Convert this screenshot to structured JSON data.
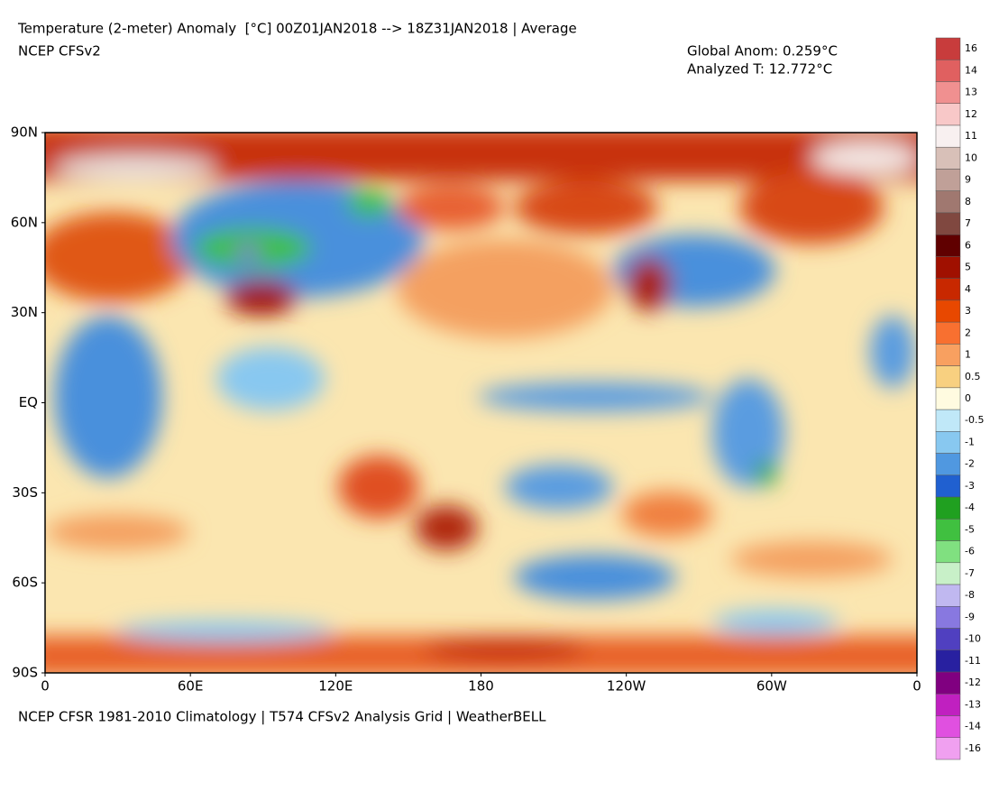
{
  "header": {
    "title": "Temperature (2-meter) Anomaly  [°C] 00Z01JAN2018 --> 18Z31JAN2018 | Average",
    "model": "NCEP CFSv2",
    "global_anom": "Global Anom: 0.259°C",
    "analyzed_t": "Analyzed T: 12.772°C"
  },
  "map": {
    "lat_labels": [
      "90N",
      "60N",
      "30N",
      "EQ",
      "30S",
      "60S",
      "90S"
    ],
    "lon_labels": [
      "0",
      "60E",
      "120E",
      "180",
      "120W",
      "60W",
      "0"
    ]
  },
  "footer": "NCEP CFSR 1981-2010 Climatology | T574 CFSv2 Analysis Grid | WeatherBELL",
  "colorbar": {
    "levels": [
      16,
      14,
      13,
      12,
      11,
      10,
      9,
      8,
      7,
      6,
      5,
      4,
      3,
      2,
      1,
      0.5,
      0,
      -0.5,
      -1,
      -2,
      -3,
      -4,
      -5,
      -6,
      -7,
      -8,
      -9,
      -10,
      -11,
      -12,
      -13,
      -14,
      -16
    ],
    "colors": [
      "#c83c3c",
      "#e06060",
      "#f09090",
      "#f8c8c8",
      "#f8f0f0",
      "#d8c0b8",
      "#c0a098",
      "#a07870",
      "#804840",
      "#600000",
      "#a01000",
      "#c82800",
      "#e84800",
      "#f87030",
      "#f8a060",
      "#f8d080",
      "#fffbe0",
      "#c0e8f8",
      "#88c8f0",
      "#5098e0",
      "#2060d0",
      "#20a020",
      "#40c040",
      "#80e080",
      "#c8f0c8",
      "#c0b8f0",
      "#8878e0",
      "#5040c0",
      "#2820a0",
      "#800080",
      "#c020c0",
      "#e050e0",
      "#f0a0f0"
    ]
  }
}
